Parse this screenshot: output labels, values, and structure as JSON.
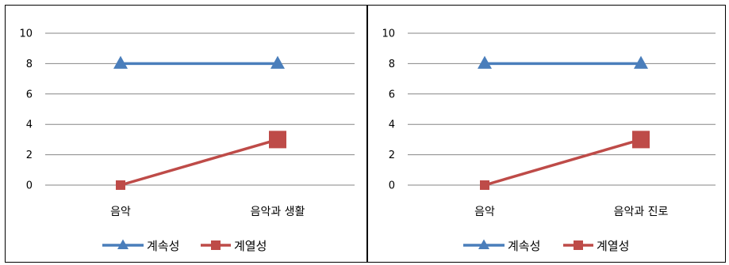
{
  "chart_data": [
    {
      "type": "line",
      "categories": [
        "음악",
        "음악과 생활"
      ],
      "series": [
        {
          "name": "계속성",
          "values": [
            8,
            8
          ],
          "color": "#4a7ebb",
          "marker": "triangle"
        },
        {
          "name": "계열성",
          "values": [
            0,
            3
          ],
          "color": "#be4b48",
          "marker": "square"
        }
      ],
      "yticks": [
        "0",
        "2",
        "4",
        "6",
        "8",
        "10"
      ],
      "ylim": [
        0,
        10
      ],
      "grid": true,
      "legend": "bottom"
    },
    {
      "type": "line",
      "categories": [
        "음악",
        "음악과 진로"
      ],
      "series": [
        {
          "name": "계속성",
          "values": [
            8,
            8
          ],
          "color": "#4a7ebb",
          "marker": "triangle"
        },
        {
          "name": "계열성",
          "values": [
            0,
            3
          ],
          "color": "#be4b48",
          "marker": "square"
        }
      ],
      "yticks": [
        "0",
        "2",
        "4",
        "6",
        "8",
        "10"
      ],
      "ylim": [
        0,
        10
      ],
      "grid": true,
      "legend": "bottom"
    }
  ]
}
